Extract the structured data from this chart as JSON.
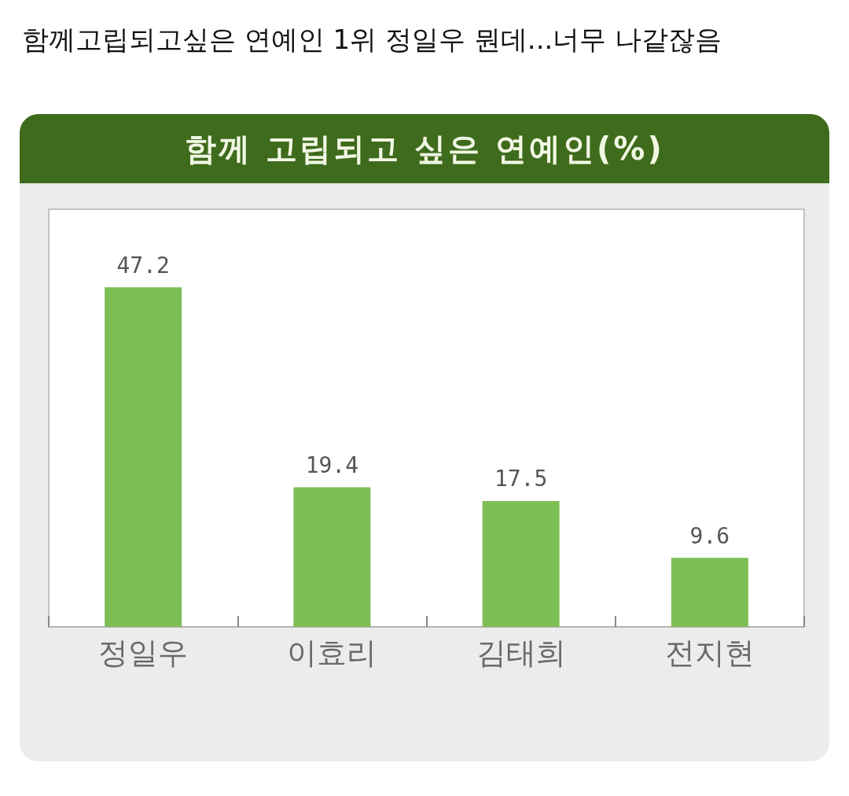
{
  "chart_data": {
    "type": "bar",
    "title": "함께고립되고싶은 연예인 1위 정일우 뭔데...너무 나같잖음",
    "subtitle": "함께 고립되고 싶은 연예인(%)",
    "categories": [
      "정일우",
      "이효리",
      "김태희",
      "전지현"
    ],
    "values": [
      47.2,
      19.4,
      17.5,
      9.6
    ],
    "color": "#7dbf55",
    "data_labels": true
  }
}
